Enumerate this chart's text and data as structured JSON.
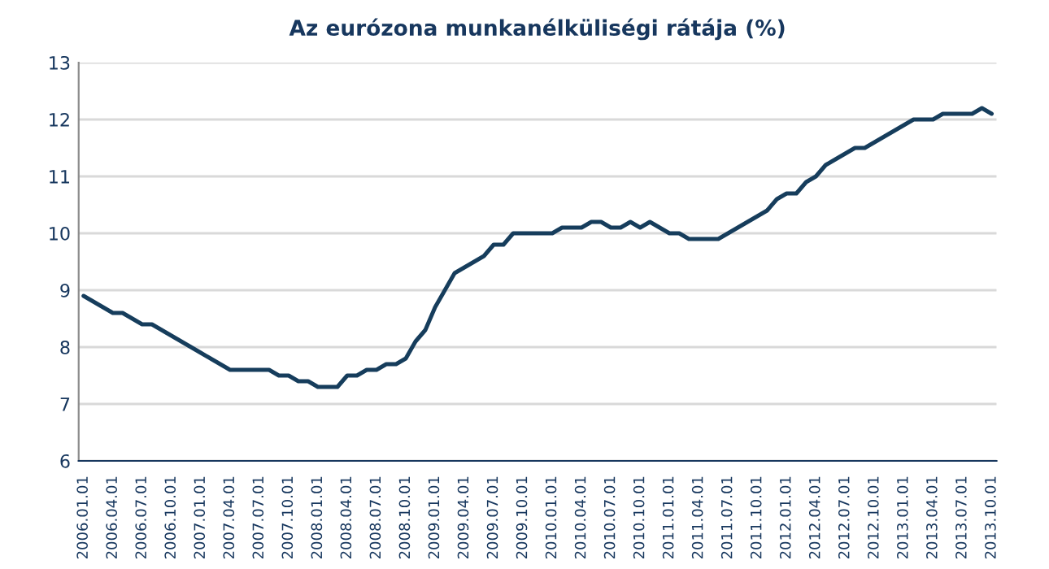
{
  "chart_data": {
    "type": "line",
    "title": "Az eurózona munkanélküliségi rátája (%)",
    "categories": [
      "2006.01.01",
      null,
      null,
      "2006.04.01",
      null,
      null,
      "2006.07.01",
      null,
      null,
      "2006.10.01",
      null,
      null,
      "2007.01.01",
      null,
      null,
      "2007.04.01",
      null,
      null,
      "2007.07.01",
      null,
      null,
      "2007.10.01",
      null,
      null,
      "2008.01.01",
      null,
      null,
      "2008.04.01",
      null,
      null,
      "2008.07.01",
      null,
      null,
      "2008.10.01",
      null,
      null,
      "2009.01.01",
      null,
      null,
      "2009.04.01",
      null,
      null,
      "2009.07.01",
      null,
      null,
      "2009.10.01",
      null,
      null,
      "2010.01.01",
      null,
      null,
      "2010.04.01",
      null,
      null,
      "2010.07.01",
      null,
      null,
      "2010.10.01",
      null,
      null,
      "2011.01.01",
      null,
      null,
      "2011.04.01",
      null,
      null,
      "2011.07.01",
      null,
      null,
      "2011.10.01",
      null,
      null,
      "2012.01.01",
      null,
      null,
      "2012.04.01",
      null,
      null,
      "2012.07.01",
      null,
      null,
      "2012.10.01",
      null,
      null,
      "2013.01.01",
      null,
      null,
      "2013.04.01",
      null,
      null,
      "2013.07.01",
      null,
      null,
      "2013.10.01"
    ],
    "series": [
      {
        "color": "#163d5c",
        "values": [
          8.9,
          8.8,
          8.7,
          8.6,
          8.6,
          8.5,
          8.4,
          8.4,
          8.3,
          8.2,
          8.1,
          8.0,
          7.9,
          7.8,
          7.7,
          7.6,
          7.6,
          7.6,
          7.6,
          7.6,
          7.5,
          7.5,
          7.4,
          7.4,
          7.3,
          7.3,
          7.3,
          7.5,
          7.5,
          7.6,
          7.6,
          7.7,
          7.7,
          7.8,
          8.1,
          8.3,
          8.7,
          9.0,
          9.3,
          9.4,
          9.5,
          9.6,
          9.8,
          9.8,
          10.0,
          10.0,
          10.0,
          10.0,
          10.0,
          10.1,
          10.1,
          10.1,
          10.2,
          10.2,
          10.1,
          10.1,
          10.2,
          10.1,
          10.2,
          10.1,
          10.0,
          10.0,
          9.9,
          9.9,
          9.9,
          9.9,
          10.0,
          10.1,
          10.2,
          10.3,
          10.4,
          10.6,
          10.7,
          10.7,
          10.9,
          11.0,
          11.2,
          11.3,
          11.4,
          11.5,
          11.5,
          11.6,
          11.7,
          11.8,
          11.9,
          12.0,
          12.0,
          12.0,
          12.1,
          12.1,
          12.1,
          12.1,
          12.2,
          12.1
        ]
      }
    ],
    "ylim": [
      6,
      13
    ],
    "yticks": [
      6,
      7,
      8,
      9,
      10,
      11,
      12,
      13
    ],
    "grid": "y",
    "marker": "none",
    "line_style": "solid"
  }
}
